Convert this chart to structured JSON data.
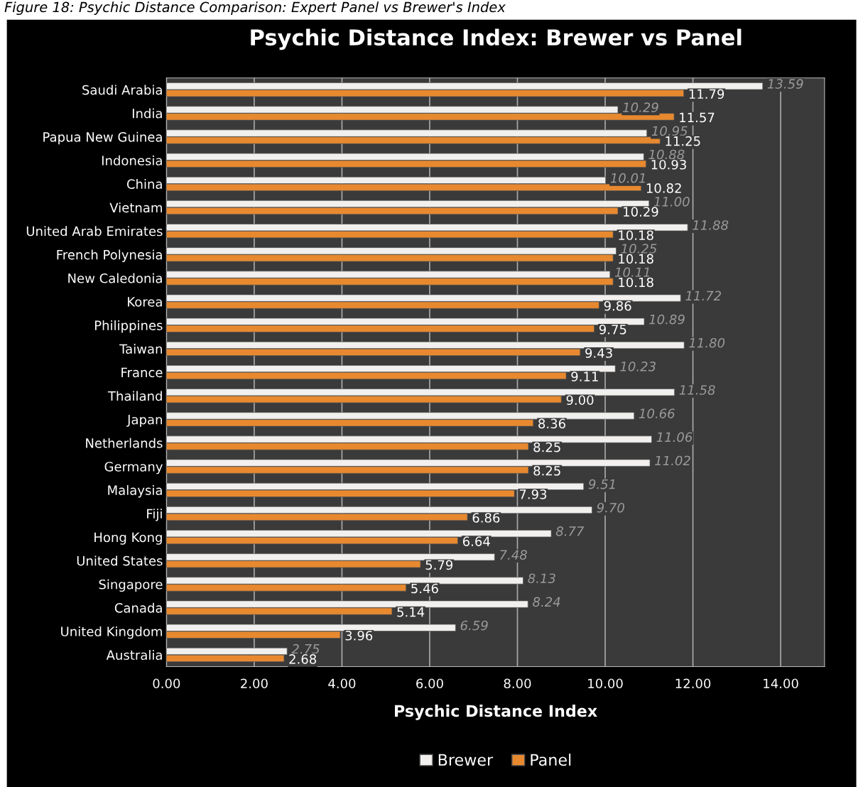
{
  "chart_data": {
    "type": "bar",
    "orientation": "horizontal",
    "title": "Psychic Distance Index: Brewer vs Panel",
    "xlabel": "Psychic Distance Index",
    "annotations": [
      "Figure 18: Psychic Distance Comparison: Expert Panel vs Brewer's Index"
    ],
    "categories": [
      "Saudi Arabia",
      "India",
      "Papua New Guinea",
      "Indonesia",
      "China",
      "Vietnam",
      "United Arab Emirates",
      "French Polynesia",
      "New Caledonia",
      "Korea",
      "Philippines",
      "Taiwan",
      "France",
      "Thailand",
      "Japan",
      "Netherlands",
      "Germany",
      "Malaysia",
      "Fiji",
      "Hong Kong",
      "United States",
      "Singapore",
      "Canada",
      "United Kingdom",
      "Australia"
    ],
    "series": [
      {
        "name": "Brewer",
        "color": "#f2f0ee",
        "values": [
          13.59,
          10.29,
          10.95,
          10.88,
          10.01,
          11.0,
          11.88,
          10.25,
          10.11,
          11.72,
          10.89,
          11.8,
          10.23,
          11.58,
          10.66,
          11.06,
          11.02,
          9.51,
          9.7,
          8.77,
          7.48,
          8.13,
          8.24,
          6.59,
          2.75
        ],
        "value_labels": [
          "13.59",
          "10.29",
          "10.95",
          "10.88",
          "10.01",
          "11.00",
          "11.88",
          "10.25",
          "10.11",
          "11.72",
          "10.89",
          "11.80",
          "10.23",
          "11.58",
          "10.66",
          "11.06",
          "11.02",
          "9.51",
          "9.70",
          "8.77",
          "7.48",
          "8.13",
          "8.24",
          "6.59",
          "2.75"
        ]
      },
      {
        "name": "Panel",
        "color": "#e8892f",
        "values": [
          11.79,
          11.57,
          11.25,
          10.93,
          10.82,
          10.29,
          10.18,
          10.18,
          10.18,
          9.86,
          9.75,
          9.43,
          9.11,
          9.0,
          8.36,
          8.25,
          8.25,
          7.93,
          6.86,
          6.64,
          5.79,
          5.46,
          5.14,
          3.96,
          2.68
        ],
        "value_labels": [
          "11.79",
          "11.57",
          "11.25",
          "10.93",
          "10.82",
          "10.29",
          "10.18",
          "10.18",
          "10.18",
          "9.86",
          "9.75",
          "9.43",
          "9.11",
          "9.00",
          "8.36",
          "8.25",
          "8.25",
          "7.93",
          "6.86",
          "6.64",
          "5.79",
          "5.46",
          "5.14",
          "3.96",
          "2.68"
        ]
      }
    ],
    "xlim": [
      0,
      15
    ],
    "xticks": [
      {
        "value": 0,
        "label": "0.00"
      },
      {
        "value": 2,
        "label": "2.00"
      },
      {
        "value": 4,
        "label": "4.00"
      },
      {
        "value": 6,
        "label": "6.00"
      },
      {
        "value": 8,
        "label": "8.00"
      },
      {
        "value": 10,
        "label": "10.00"
      },
      {
        "value": 12,
        "label": "12.00"
      },
      {
        "value": 14,
        "label": "14.00"
      }
    ],
    "grid": "x",
    "legend": "bottom"
  }
}
